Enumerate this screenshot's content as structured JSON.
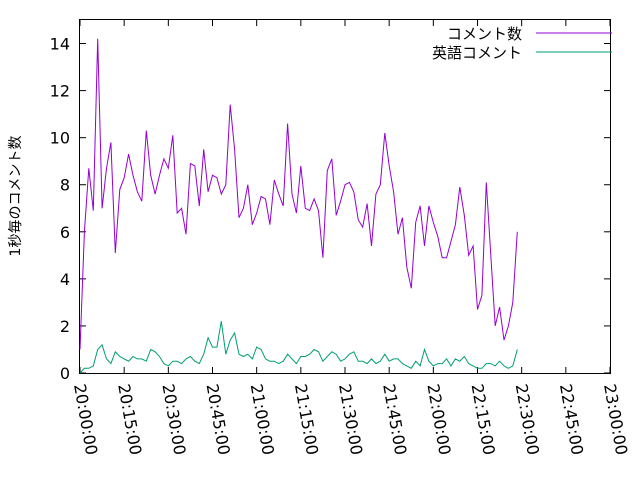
{
  "chart_data": {
    "type": "line",
    "title": "",
    "ylabel": "1秒毎のコメント数",
    "xlabel": "",
    "xlim": [
      "20:00:00",
      "23:00:00"
    ],
    "ylim": [
      0,
      15
    ],
    "x_ticks": [
      "20:00:00",
      "20:15:00",
      "20:30:00",
      "20:45:00",
      "21:00:00",
      "21:15:00",
      "21:30:00",
      "21:45:00",
      "22:00:00",
      "22:15:00",
      "22:30:00",
      "22:45:00",
      "23:00:00"
    ],
    "y_ticks": [
      0,
      2,
      4,
      6,
      8,
      10,
      12,
      14
    ],
    "grid": false,
    "legend_position": "top-right",
    "x_start": "20:00:00",
    "x_step_seconds": 90,
    "series": [
      {
        "name": "コメント数",
        "color": "#9400d3",
        "values": [
          1.0,
          6.0,
          8.7,
          6.9,
          14.2,
          7.0,
          8.7,
          9.8,
          5.1,
          7.8,
          8.3,
          9.3,
          8.4,
          7.7,
          7.3,
          10.3,
          8.4,
          7.6,
          8.4,
          9.1,
          8.7,
          10.1,
          6.8,
          7.0,
          5.9,
          8.9,
          8.8,
          7.1,
          9.5,
          7.7,
          8.4,
          8.3,
          7.6,
          8.0,
          11.4,
          9.5,
          6.6,
          7.0,
          8.0,
          6.3,
          6.8,
          7.5,
          7.4,
          6.3,
          8.2,
          7.6,
          7.1,
          10.6,
          7.6,
          6.8,
          8.8,
          7.0,
          6.9,
          7.4,
          6.9,
          4.9,
          8.6,
          9.1,
          6.7,
          7.3,
          8.0,
          8.1,
          7.7,
          6.5,
          6.2,
          7.2,
          5.4,
          7.6,
          8.0,
          10.2,
          8.8,
          7.7,
          5.9,
          6.6,
          4.5,
          3.6,
          6.4,
          7.1,
          5.4,
          7.1,
          6.4,
          5.8,
          4.9,
          4.9,
          5.6,
          6.3,
          7.9,
          6.7,
          5.0,
          5.4,
          2.7,
          3.3,
          8.1,
          5.0,
          2.0,
          2.8,
          1.4,
          2.0,
          3.0,
          6.0
        ]
      },
      {
        "name": "英語コメント",
        "color": "#009e73",
        "values": [
          0.0,
          0.2,
          0.2,
          0.3,
          1.0,
          1.2,
          0.6,
          0.4,
          0.9,
          0.7,
          0.6,
          0.5,
          0.7,
          0.6,
          0.6,
          0.5,
          1.0,
          0.9,
          0.7,
          0.4,
          0.3,
          0.5,
          0.5,
          0.4,
          0.6,
          0.7,
          0.5,
          0.4,
          0.8,
          1.5,
          1.1,
          1.1,
          2.2,
          0.8,
          1.4,
          1.7,
          0.8,
          0.7,
          0.8,
          0.6,
          1.1,
          1.0,
          0.6,
          0.5,
          0.5,
          0.4,
          0.5,
          0.8,
          0.6,
          0.4,
          0.7,
          0.7,
          0.8,
          1.0,
          0.9,
          0.5,
          0.7,
          0.9,
          0.8,
          0.5,
          0.6,
          0.8,
          0.9,
          0.5,
          0.5,
          0.4,
          0.6,
          0.4,
          0.5,
          0.8,
          0.5,
          0.6,
          0.6,
          0.4,
          0.3,
          0.2,
          0.5,
          0.3,
          1.0,
          0.5,
          0.3,
          0.4,
          0.4,
          0.6,
          0.3,
          0.6,
          0.5,
          0.7,
          0.4,
          0.3,
          0.2,
          0.2,
          0.4,
          0.4,
          0.3,
          0.5,
          0.3,
          0.2,
          0.3,
          1.0
        ]
      }
    ]
  }
}
